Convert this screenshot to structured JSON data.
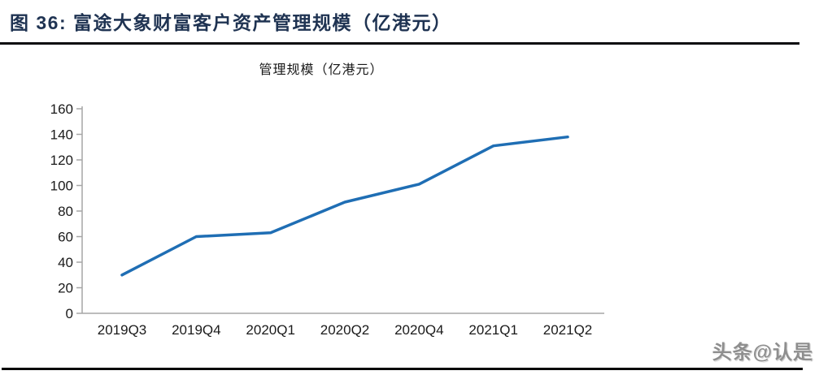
{
  "header": {
    "title": "图 36:  富途大象财富客户资产管理规模（亿港元）"
  },
  "chart_data": {
    "type": "line",
    "title": "管理规模（亿港元）",
    "categories": [
      "2019Q3",
      "2019Q4",
      "2020Q1",
      "2020Q2",
      "2020Q4",
      "2021Q1",
      "2021Q2"
    ],
    "values": [
      30,
      60,
      63,
      87,
      101,
      131,
      138
    ],
    "xlabel": "",
    "ylabel": "",
    "ylim": [
      0,
      160
    ],
    "ytick_step": 20,
    "grid": false,
    "legend_position": "none",
    "line_color": "#1F6EB4",
    "axis_color": "#A6A6A6",
    "tick_label_color": "#1a1a1a"
  },
  "footer": {
    "watermark": "头条@认是"
  },
  "colors": {
    "figure_title": "#1F3352",
    "rule": "#0a0a0f",
    "background": "#ffffff"
  }
}
